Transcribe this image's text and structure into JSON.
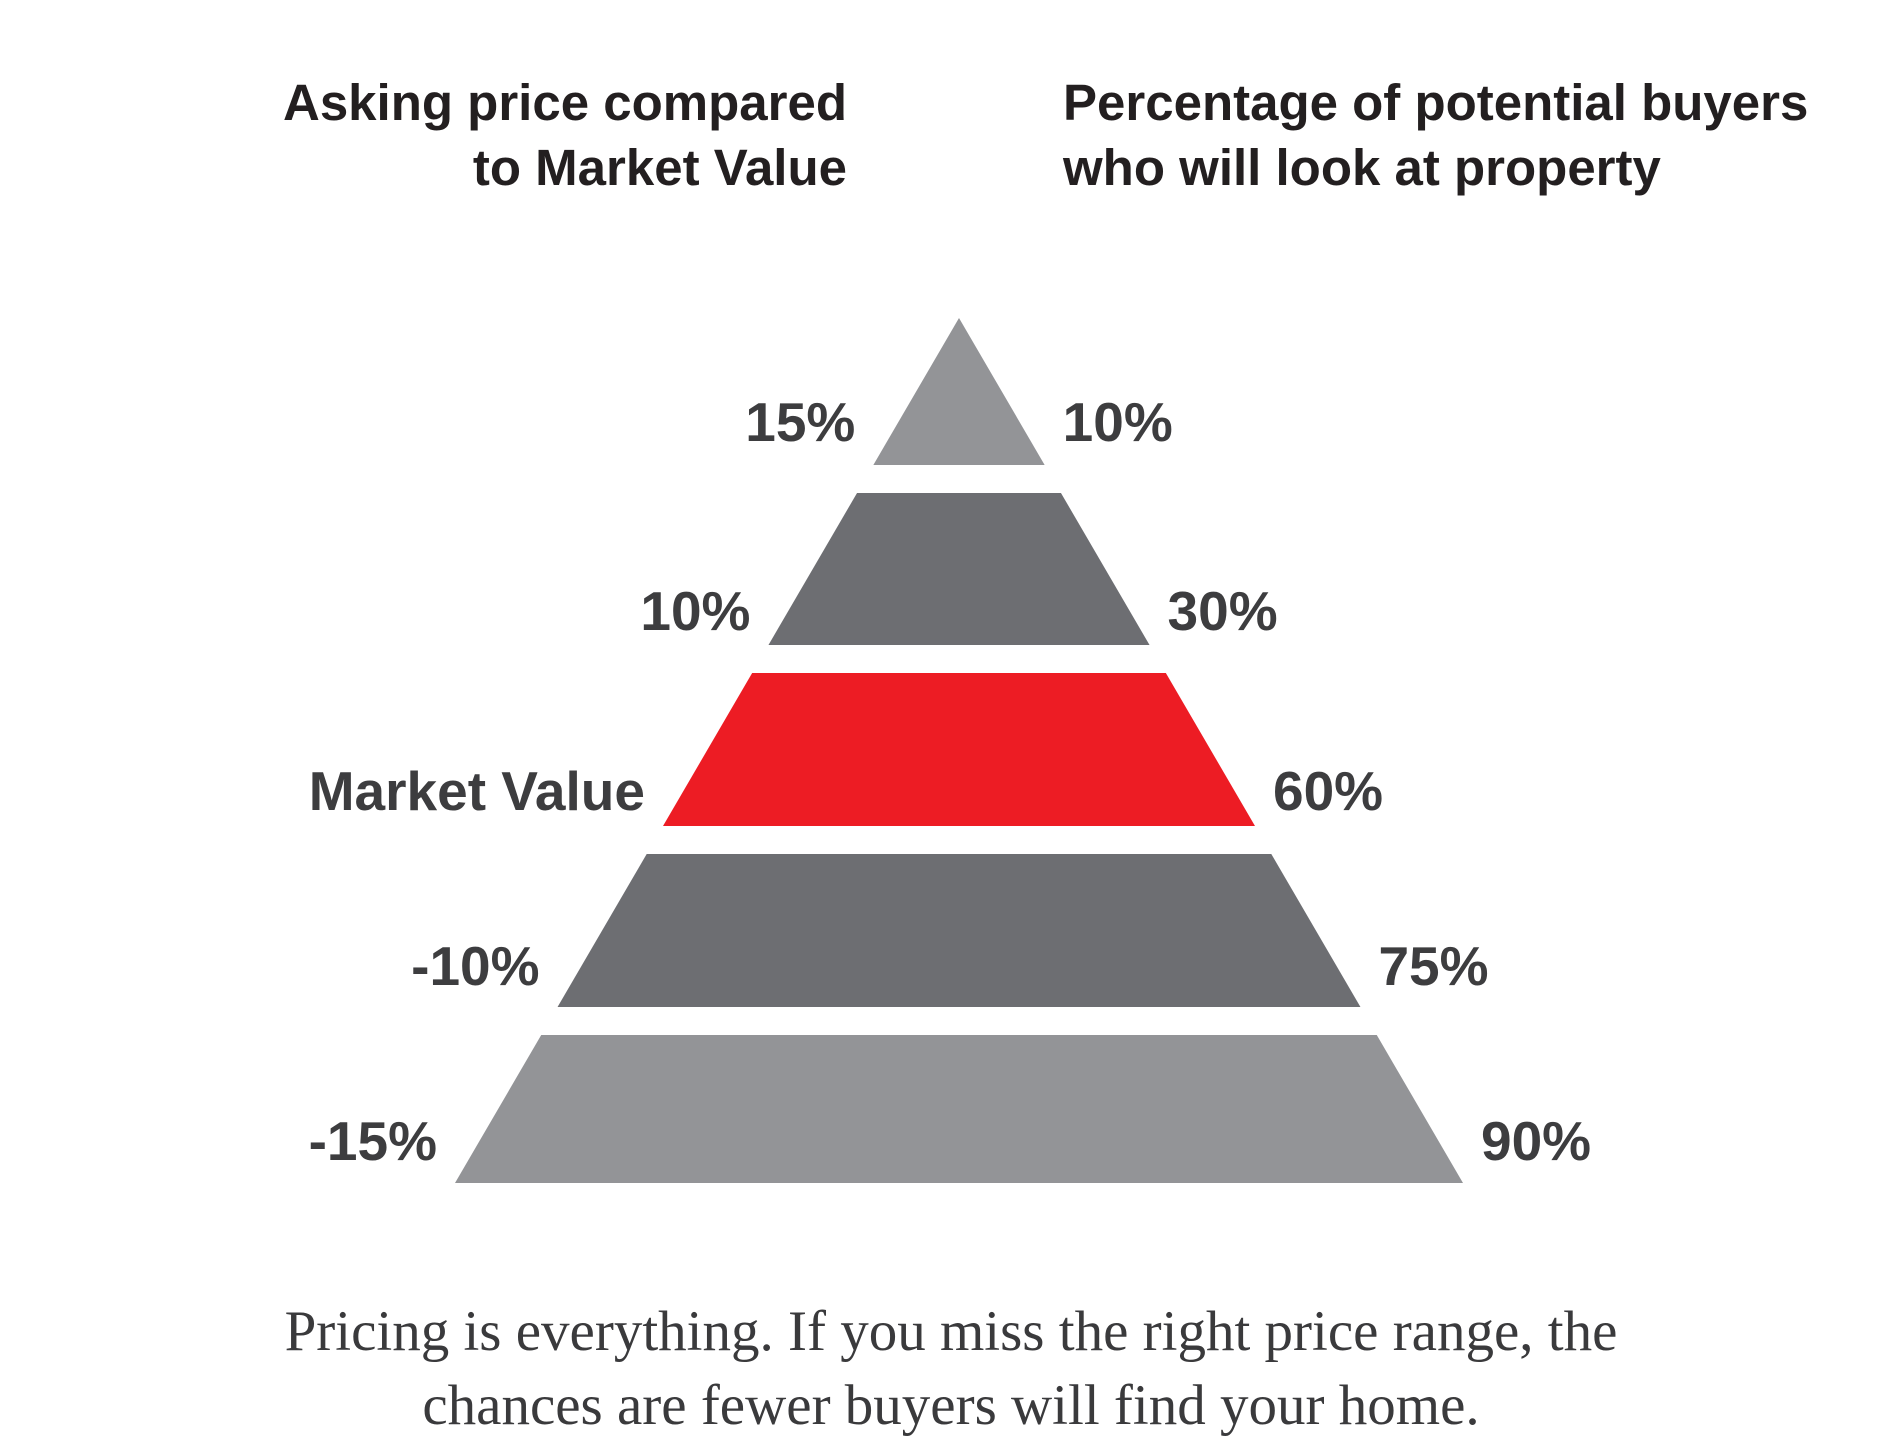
{
  "headers": {
    "left": [
      "Asking price compared",
      "to Market Value"
    ],
    "right": [
      "Percentage of potential buyers",
      "who will look at property"
    ]
  },
  "tiers": [
    {
      "left": "15%",
      "right": "10%",
      "color": "#939497"
    },
    {
      "left": "10%",
      "right": "30%",
      "color": "#6d6e72"
    },
    {
      "left": "Market Value",
      "right": "60%",
      "color": "#ed1c24"
    },
    {
      "left": "-10%",
      "right": "75%",
      "color": "#6d6e72"
    },
    {
      "left": "-15%",
      "right": "90%",
      "color": "#939497"
    }
  ],
  "caption": [
    "Pricing is everything. If you miss the right price range, the",
    "chances are fewer buyers will find your home."
  ]
}
